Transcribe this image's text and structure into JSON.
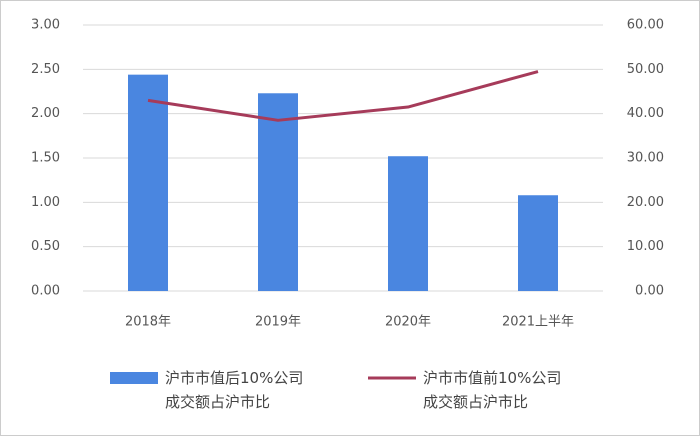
{
  "chart_data": {
    "type": "bar",
    "categories": [
      "2018年",
      "2019年",
      "2020年",
      "2021上半年"
    ],
    "series": [
      {
        "name": "沪市市值后10%公司\n成交额占沪市比",
        "color": "#4a86e0",
        "values": [
          2.44,
          2.23,
          1.52,
          1.08
        ]
      },
      {
        "name": "沪市市值前10%公司\n成交额占沪市比",
        "type": "line",
        "axis": "y2",
        "color": "#a63b5a",
        "values": [
          43.0,
          38.5,
          41.5,
          49.5
        ]
      }
    ],
    "ylim": [
      0,
      3
    ],
    "yticks": [
      {
        "value": 0,
        "label": "0.00"
      },
      {
        "value": 0.5,
        "label": "0.50"
      },
      {
        "value": 1,
        "label": "1.00"
      },
      {
        "value": 1.5,
        "label": "1.50"
      },
      {
        "value": 2,
        "label": "2.00"
      },
      {
        "value": 2.5,
        "label": "2.50"
      },
      {
        "value": 3,
        "label": "3.00"
      }
    ],
    "y2lim": [
      0,
      60
    ],
    "y2ticks": [
      {
        "value": 0,
        "label": "0.00"
      },
      {
        "value": 10,
        "label": "10.00"
      },
      {
        "value": 20,
        "label": "20.00"
      },
      {
        "value": 30,
        "label": "30.00"
      },
      {
        "value": 40,
        "label": "40.00"
      },
      {
        "value": 50,
        "label": "50.00"
      },
      {
        "value": 60,
        "label": "60.00"
      }
    ],
    "grid": true,
    "legend": "bottom"
  }
}
